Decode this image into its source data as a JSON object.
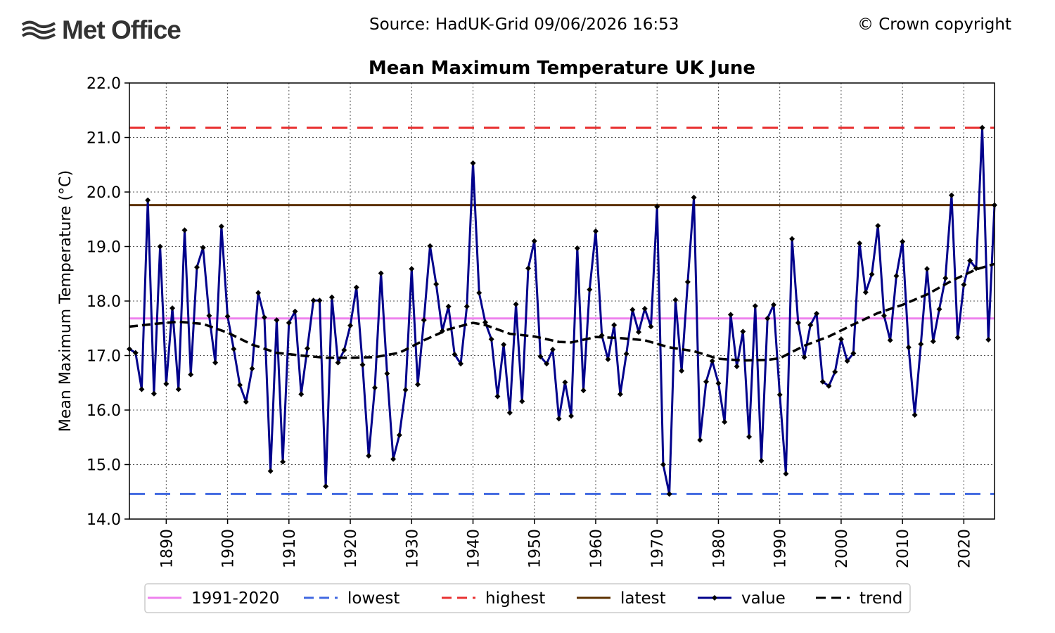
{
  "header": {
    "logo_text": "Met Office",
    "source": "Source: HadUK-Grid 09/06/2026 16:53",
    "copyright": "© Crown copyright"
  },
  "colors": {
    "value": "#00008b",
    "trend": "#000000",
    "avg": "#ee82ee",
    "lowest": "#4169e1",
    "highest": "#e83232",
    "latest": "#5c3100"
  },
  "chart_data": {
    "type": "line",
    "title": "Mean Maximum Temperature UK June",
    "ylabel": "Mean Maximum Temperature (°C)",
    "xlabel": "",
    "xlim": [
      1884,
      2025
    ],
    "ylim": [
      14.0,
      22.0
    ],
    "yticks": [
      "14.0",
      "15.0",
      "16.0",
      "17.0",
      "18.0",
      "19.0",
      "20.0",
      "21.0",
      "22.0"
    ],
    "xticks": [
      "1890",
      "1900",
      "1910",
      "1920",
      "1930",
      "1940",
      "1950",
      "1960",
      "1970",
      "1980",
      "1990",
      "2000",
      "2010",
      "2020"
    ],
    "grid": true,
    "legend_position": "bottom",
    "legend": [
      {
        "label": "1991-2020",
        "style": "solid",
        "color_key": "avg"
      },
      {
        "label": "lowest",
        "style": "dashed",
        "color_key": "lowest"
      },
      {
        "label": "highest",
        "style": "dashed",
        "color_key": "highest"
      },
      {
        "label": "latest",
        "style": "solid",
        "color_key": "latest"
      },
      {
        "label": "value",
        "style": "marker",
        "color_key": "value"
      },
      {
        "label": "trend",
        "style": "dashed",
        "color_key": "trend"
      }
    ],
    "reference_lines": {
      "1991-2020": 17.68,
      "lowest": 14.46,
      "highest": 21.18,
      "latest": 19.76
    },
    "series": [
      {
        "name": "value",
        "x_start": 1884,
        "values": [
          17.12,
          17.05,
          16.38,
          19.85,
          16.3,
          19.0,
          16.48,
          17.87,
          16.38,
          19.3,
          16.65,
          18.62,
          18.98,
          17.73,
          16.87,
          19.37,
          17.72,
          17.12,
          16.46,
          16.15,
          16.76,
          18.15,
          17.7,
          14.88,
          17.65,
          15.05,
          17.6,
          17.81,
          16.29,
          17.13,
          18.01,
          18.01,
          14.6,
          18.07,
          16.87,
          17.1,
          17.55,
          18.25,
          16.83,
          15.16,
          16.41,
          18.51,
          16.67,
          15.1,
          15.54,
          16.37,
          18.59,
          16.47,
          17.65,
          19.01,
          18.31,
          17.45,
          17.9,
          17.02,
          16.85,
          17.9,
          20.53,
          18.15,
          17.61,
          17.3,
          16.25,
          17.2,
          15.95,
          17.94,
          16.16,
          18.6,
          19.1,
          16.98,
          16.85,
          17.11,
          15.84,
          16.51,
          15.89,
          18.97,
          16.36,
          18.21,
          19.28,
          17.37,
          16.93,
          17.56,
          16.29,
          17.03,
          17.84,
          17.43,
          17.86,
          17.53,
          19.73,
          15.0,
          14.46,
          18.02,
          16.72,
          18.35,
          19.9,
          15.45,
          16.52,
          16.9,
          16.49,
          15.78,
          17.75,
          16.8,
          17.44,
          15.51,
          17.91,
          15.07,
          17.68,
          17.93,
          16.28,
          14.83,
          19.14,
          17.6,
          16.97,
          17.56,
          17.77,
          16.52,
          16.44,
          16.7,
          17.3,
          16.9,
          17.04,
          19.06,
          18.16,
          18.49,
          19.38,
          17.73,
          17.28,
          18.46,
          19.09,
          17.15,
          15.91,
          17.21,
          18.59,
          17.26,
          17.85,
          18.42,
          19.94,
          17.33,
          18.3,
          18.74,
          18.6,
          21.18,
          17.29,
          19.76
        ]
      },
      {
        "name": "trend",
        "points": [
          [
            1884,
            17.53
          ],
          [
            1888,
            17.58
          ],
          [
            1892,
            17.62
          ],
          [
            1896,
            17.58
          ],
          [
            1900,
            17.42
          ],
          [
            1904,
            17.2
          ],
          [
            1908,
            17.05
          ],
          [
            1912,
            17.0
          ],
          [
            1916,
            16.96
          ],
          [
            1920,
            16.96
          ],
          [
            1924,
            16.97
          ],
          [
            1928,
            17.05
          ],
          [
            1932,
            17.28
          ],
          [
            1936,
            17.48
          ],
          [
            1940,
            17.6
          ],
          [
            1942,
            17.56
          ],
          [
            1946,
            17.4
          ],
          [
            1950,
            17.35
          ],
          [
            1954,
            17.25
          ],
          [
            1956,
            17.24
          ],
          [
            1960,
            17.34
          ],
          [
            1964,
            17.32
          ],
          [
            1968,
            17.28
          ],
          [
            1972,
            17.15
          ],
          [
            1976,
            17.08
          ],
          [
            1980,
            16.94
          ],
          [
            1984,
            16.91
          ],
          [
            1988,
            16.92
          ],
          [
            1990,
            16.95
          ],
          [
            1994,
            17.18
          ],
          [
            1998,
            17.35
          ],
          [
            2002,
            17.57
          ],
          [
            2006,
            17.78
          ],
          [
            2010,
            17.93
          ],
          [
            2014,
            18.12
          ],
          [
            2018,
            18.37
          ],
          [
            2022,
            18.58
          ],
          [
            2025,
            18.68
          ]
        ]
      }
    ]
  }
}
